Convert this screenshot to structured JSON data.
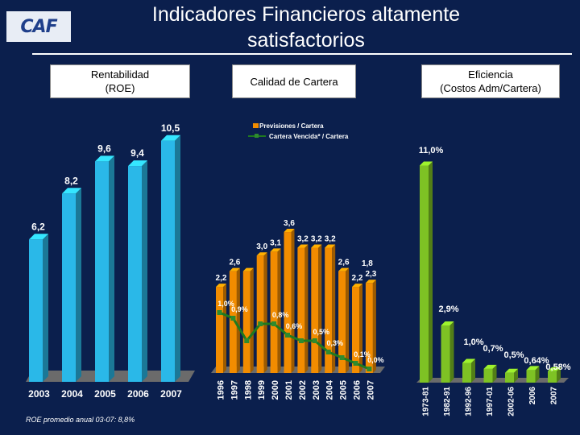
{
  "slide": {
    "logo": "CAF",
    "title_line1": "Indicadores Financieros altamente",
    "title_line2": "satisfactorios",
    "box_roe_line1": "Rentabilidad",
    "box_roe_line2": "(ROE)",
    "box_cartera": "Calidad de Cartera",
    "box_efic_line1": "Eficiencia",
    "box_efic_line2": "(Costos Adm/Cartera)",
    "footnote": "ROE promedio anual 03-07: 8,8%"
  },
  "colors": {
    "background": "#0b1f4d",
    "roe_bar": "#2ab8e8",
    "cartera_bar": "#f28c00",
    "cartera_line": "#1f7a1f",
    "efic_bar": "#7ec224"
  },
  "chart_data": [
    {
      "type": "bar",
      "categories": [
        "2003",
        "2004",
        "2005",
        "2006",
        "2007"
      ],
      "values": [
        6.2,
        8.2,
        9.6,
        9.4,
        10.5
      ],
      "labels": [
        "6,2",
        "8,2",
        "9,6",
        "9,4",
        "10,5"
      ],
      "title": "Rentabilidad (ROE)"
    },
    {
      "type": "bar",
      "title": "Calidad de Cartera",
      "categories": [
        "1996",
        "1997",
        "1998",
        "1999",
        "2000",
        "2001",
        "2002",
        "2003",
        "2004",
        "2005",
        "2006",
        "2007"
      ],
      "series": [
        {
          "name": "Previsiones / Cartera",
          "kind": "bar",
          "values": [
            2.2,
            2.6,
            2.6,
            3.0,
            3.1,
            3.6,
            3.2,
            3.2,
            3.2,
            2.6,
            2.2,
            2.3
          ],
          "labels": [
            "2,2",
            "2,6",
            "",
            "3,0",
            "3,1",
            "3,6",
            "3,2",
            "3,2",
            "3,2",
            "2,6",
            "2,2",
            "2,3"
          ]
        },
        {
          "name": "Cartera Vencida* / Cartera",
          "kind": "line",
          "values": [
            1.0,
            0.9,
            0.5,
            0.8,
            0.8,
            0.6,
            0.5,
            0.5,
            0.3,
            0.2,
            0.1,
            0.0
          ],
          "labels": [
            "1,0%",
            "0,9%",
            "",
            "",
            "0,8%",
            "0,6%",
            "",
            "0,5%",
            "0,3%",
            "",
            "0,1%",
            "0,0%"
          ]
        }
      ],
      "extra_labels": [
        "1,8"
      ]
    },
    {
      "type": "bar",
      "title": "Eficiencia (Costos Adm/Cartera)",
      "categories": [
        "1973-81",
        "1982-91",
        "1992-96",
        "1997-01",
        "2002-06",
        "2006",
        "2007"
      ],
      "values": [
        11.0,
        2.9,
        1.0,
        0.7,
        0.5,
        0.64,
        0.58
      ],
      "labels": [
        "11,0%",
        "2,9%",
        "1,0%",
        "0,7%",
        "0,5%",
        "0,64%",
        "0,58%"
      ]
    }
  ]
}
